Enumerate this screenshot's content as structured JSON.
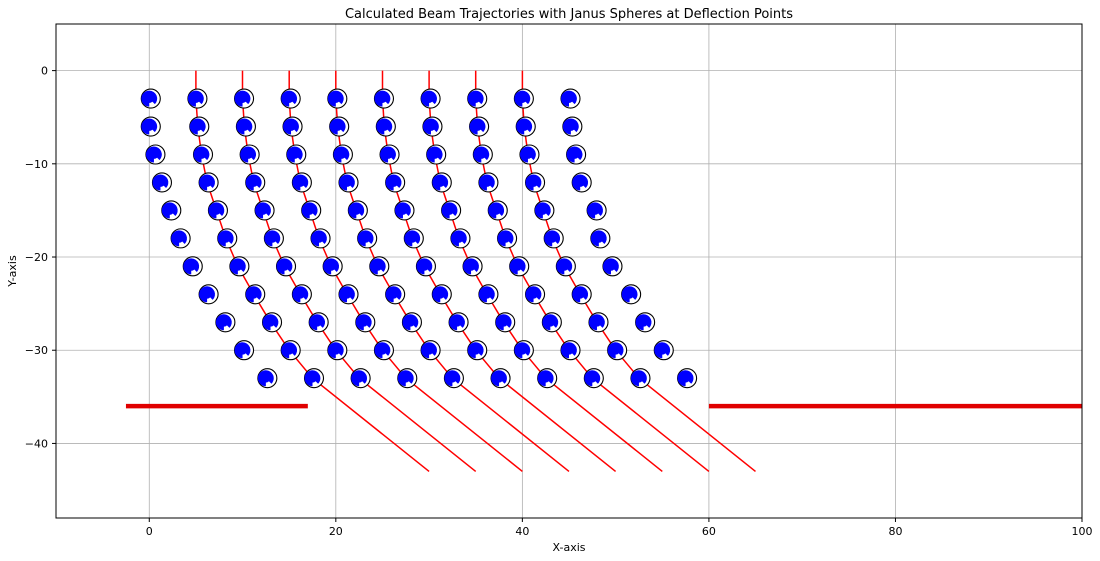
{
  "chart_data": {
    "type": "scatter",
    "title": "Calculated Beam Trajectories with Janus Spheres at Deflection Points",
    "xlabel": "X-axis",
    "ylabel": "Y-axis",
    "xlim": [
      -10,
      100
    ],
    "ylim": [
      -48,
      5
    ],
    "x_ticks": [
      0,
      20,
      40,
      60,
      80,
      100
    ],
    "y_ticks": [
      0,
      -10,
      -20,
      -30,
      -40
    ],
    "x_tick_labels": [
      "0",
      "20",
      "40",
      "60",
      "80",
      "100"
    ],
    "y_tick_labels": [
      "0",
      "−10",
      "−20",
      "−30",
      "−40"
    ],
    "grid": true,
    "colors": {
      "beam": "#ff0000",
      "barrier": "#e00000",
      "sphere_fill": "#0000ff",
      "sphere_outline": "#000000",
      "grid": "#b0b0b0"
    },
    "barriers": [
      {
        "x": [
          -2.5,
          17
        ],
        "y": -36
      },
      {
        "x": [
          60,
          100
        ],
        "y": -36
      }
    ],
    "beams": [
      {
        "start_x": 5,
        "end": [
          30,
          -43
        ]
      },
      {
        "start_x": 10,
        "end": [
          35,
          -43
        ]
      },
      {
        "start_x": 15,
        "end": [
          40,
          -43
        ]
      },
      {
        "start_x": 20,
        "end": [
          45,
          -43
        ]
      },
      {
        "start_x": 25,
        "end": [
          50,
          -43
        ]
      },
      {
        "start_x": 30,
        "end": [
          55,
          -43
        ]
      },
      {
        "start_x": 35,
        "end": [
          60,
          -43
        ]
      },
      {
        "start_x": 40,
        "end": [
          65,
          -43
        ]
      }
    ],
    "sphere_rows_y": [
      -3,
      -6,
      -9,
      -12,
      -15,
      -18,
      -21,
      -24,
      -27,
      -30,
      -33
    ],
    "sphere_rows_x": [
      [
        0,
        5,
        10,
        15,
        20,
        25,
        30,
        35,
        40,
        45
      ],
      [
        0,
        5.2,
        10.2,
        15.2,
        20.2,
        25.2,
        30.2,
        35.2,
        40.2,
        45.2
      ],
      [
        0.5,
        5.6,
        10.6,
        15.6,
        20.6,
        25.6,
        30.6,
        35.6,
        40.6,
        45.6
      ],
      [
        1.2,
        6.2,
        11.2,
        16.2,
        21.2,
        26.2,
        31.2,
        36.2,
        41.2,
        46.2
      ],
      [
        2.2,
        7.2,
        12.2,
        17.2,
        22.2,
        27.2,
        32.2,
        37.2,
        42.2,
        47.8
      ],
      [
        3.2,
        8.2,
        13.2,
        18.2,
        23.2,
        28.2,
        33.2,
        38.2,
        43.2,
        48.2
      ],
      [
        4.5,
        9.5,
        14.5,
        19.5,
        24.5,
        29.5,
        34.5,
        39.5,
        44.5,
        49.5
      ],
      [
        6.2,
        11.2,
        16.2,
        21.2,
        26.2,
        31.2,
        36.2,
        41.2,
        46.2,
        51.5
      ],
      [
        8,
        13,
        18,
        23,
        28,
        33,
        38,
        43,
        48,
        53
      ],
      [
        10,
        15,
        20,
        25,
        30,
        35,
        40,
        45,
        50,
        55
      ],
      [
        12.5,
        17.5,
        22.5,
        27.5,
        32.5,
        37.5,
        42.5,
        47.5,
        52.5,
        57.5
      ]
    ]
  }
}
